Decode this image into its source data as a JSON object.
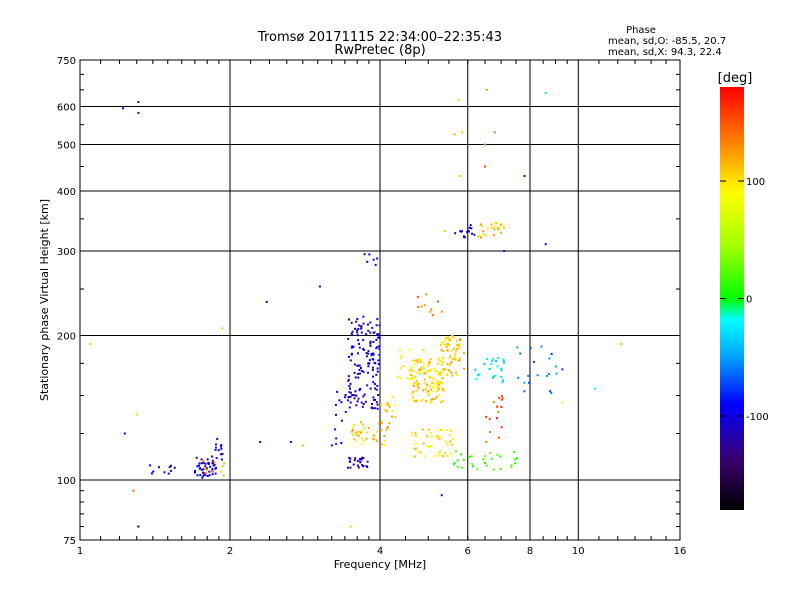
{
  "chart_data": {
    "type": "scatter",
    "title": "Tromsø 20171115 22:34:00–22:35:43",
    "subtitle": "RwPretec (8p)",
    "xlabel": "Frequency [MHz]",
    "ylabel": "Stationary phase Virtual Height [km]",
    "x_scale": "log",
    "y_scale": "log",
    "xlim": [
      1,
      16
    ],
    "ylim": [
      75,
      750
    ],
    "x_ticks": [
      1,
      2,
      4,
      6,
      8,
      10,
      16
    ],
    "y_ticks": [
      75,
      100,
      200,
      300,
      400,
      500,
      600,
      750
    ],
    "grid": true,
    "stats": {
      "heading": "Phase",
      "o_line": "mean, sd,O: -85.5, 20.7",
      "x_line": "mean, sd,X:  94.3, 22.4"
    },
    "colorbar": {
      "label": "[deg]",
      "range": [
        -180,
        180
      ],
      "ticks": [
        -100,
        0,
        100
      ],
      "tick_labels": [
        "-100",
        "0",
        "100"
      ]
    },
    "clusters": [
      {
        "fx": [
          1.35,
          1.55
        ],
        "fy": [
          102,
          108
        ],
        "phase": -110,
        "n": 10
      },
      {
        "fx": [
          1.7,
          1.88
        ],
        "fy": [
          101,
          112
        ],
        "phase": -110,
        "n": 45
      },
      {
        "fx": [
          1.85,
          1.95
        ],
        "fy": [
          110,
          122
        ],
        "phase": -100,
        "n": 12
      },
      {
        "fx": [
          1.7,
          1.95
        ],
        "fy": [
          102,
          110
        ],
        "phase": 120,
        "n": 10
      },
      {
        "fx": [
          3.45,
          4.0
        ],
        "fy": [
          140,
          220
        ],
        "phase": -110,
        "n": 150
      },
      {
        "fx": [
          3.2,
          3.5
        ],
        "fy": [
          118,
          160
        ],
        "phase": -100,
        "n": 15
      },
      {
        "fx": [
          3.45,
          3.8
        ],
        "fy": [
          106,
          112
        ],
        "phase": -110,
        "n": 25
      },
      {
        "fx": [
          3.5,
          4.2
        ],
        "fy": [
          118,
          132
        ],
        "phase": 110,
        "n": 40
      },
      {
        "fx": [
          4.0,
          4.3
        ],
        "fy": [
          132,
          150
        ],
        "phase": 105,
        "n": 15
      },
      {
        "fx": [
          4.6,
          5.4
        ],
        "fy": [
          145,
          180
        ],
        "phase": 105,
        "n": 120
      },
      {
        "fx": [
          5.3,
          5.9
        ],
        "fy": [
          165,
          200
        ],
        "phase": 110,
        "n": 60
      },
      {
        "fx": [
          4.3,
          5.1
        ],
        "fy": [
          160,
          190
        ],
        "phase": 85,
        "n": 20
      },
      {
        "fx": [
          4.6,
          5.6
        ],
        "fy": [
          112,
          128
        ],
        "phase": 100,
        "n": 45
      },
      {
        "fx": [
          5.6,
          7.6
        ],
        "fy": [
          105,
          115
        ],
        "phase": 20,
        "n": 30
      },
      {
        "fx": [
          6.2,
          7.2
        ],
        "fy": [
          160,
          180
        ],
        "phase": -30,
        "n": 25
      },
      {
        "fx": [
          5.6,
          6.2
        ],
        "fy": [
          320,
          340
        ],
        "phase": -100,
        "n": 15
      },
      {
        "fx": [
          6.3,
          7.2
        ],
        "fy": [
          318,
          345
        ],
        "phase": 110,
        "n": 25
      },
      {
        "fx": [
          4.7,
          5.4
        ],
        "fy": [
          220,
          260
        ],
        "phase": 140,
        "n": 10
      },
      {
        "fx": [
          3.7,
          4.0
        ],
        "fy": [
          280,
          300
        ],
        "phase": -110,
        "n": 6
      },
      {
        "fx": [
          7.5,
          9.3
        ],
        "fy": [
          150,
          190
        ],
        "phase": -60,
        "n": 20
      },
      {
        "fx": [
          6.5,
          7.2
        ],
        "fy": [
          120,
          150
        ],
        "phase": 150,
        "n": 15
      }
    ],
    "points": [
      {
        "x": 1.05,
        "y": 192,
        "phase": 110
      },
      {
        "x": 1.22,
        "y": 595,
        "phase": -100
      },
      {
        "x": 1.31,
        "y": 613,
        "phase": -130
      },
      {
        "x": 1.31,
        "y": 582,
        "phase": -120
      },
      {
        "x": 1.23,
        "y": 125,
        "phase": -90
      },
      {
        "x": 1.3,
        "y": 137,
        "phase": 50
      },
      {
        "x": 1.28,
        "y": 95,
        "phase": 150
      },
      {
        "x": 1.31,
        "y": 80,
        "phase": -150
      },
      {
        "x": 2.37,
        "y": 235,
        "phase": -110
      },
      {
        "x": 1.93,
        "y": 207,
        "phase": 110
      },
      {
        "x": 2.3,
        "y": 120,
        "phase": -110
      },
      {
        "x": 2.65,
        "y": 120,
        "phase": -100
      },
      {
        "x": 2.8,
        "y": 118,
        "phase": 30
      },
      {
        "x": 3.03,
        "y": 253,
        "phase": -110
      },
      {
        "x": 3.5,
        "y": 80,
        "phase": 50
      },
      {
        "x": 5.32,
        "y": 93,
        "phase": -110
      },
      {
        "x": 5.75,
        "y": 620,
        "phase": 105
      },
      {
        "x": 6.55,
        "y": 650,
        "phase": 130
      },
      {
        "x": 8.6,
        "y": 640,
        "phase": -30
      },
      {
        "x": 5.65,
        "y": 525,
        "phase": 120
      },
      {
        "x": 5.85,
        "y": 530,
        "phase": 110
      },
      {
        "x": 6.8,
        "y": 530,
        "phase": 140
      },
      {
        "x": 6.5,
        "y": 500,
        "phase": 130
      },
      {
        "x": 6.5,
        "y": 450,
        "phase": 160
      },
      {
        "x": 7.8,
        "y": 430,
        "phase": -110
      },
      {
        "x": 5.8,
        "y": 430,
        "phase": 110
      },
      {
        "x": 8.6,
        "y": 310,
        "phase": -110
      },
      {
        "x": 12.2,
        "y": 192,
        "phase": 40
      },
      {
        "x": 10.8,
        "y": 155,
        "phase": -20
      },
      {
        "x": 9.3,
        "y": 145,
        "phase": 70
      },
      {
        "x": 5.4,
        "y": 330,
        "phase": 110
      },
      {
        "x": 7.1,
        "y": 300,
        "phase": -110
      }
    ]
  }
}
